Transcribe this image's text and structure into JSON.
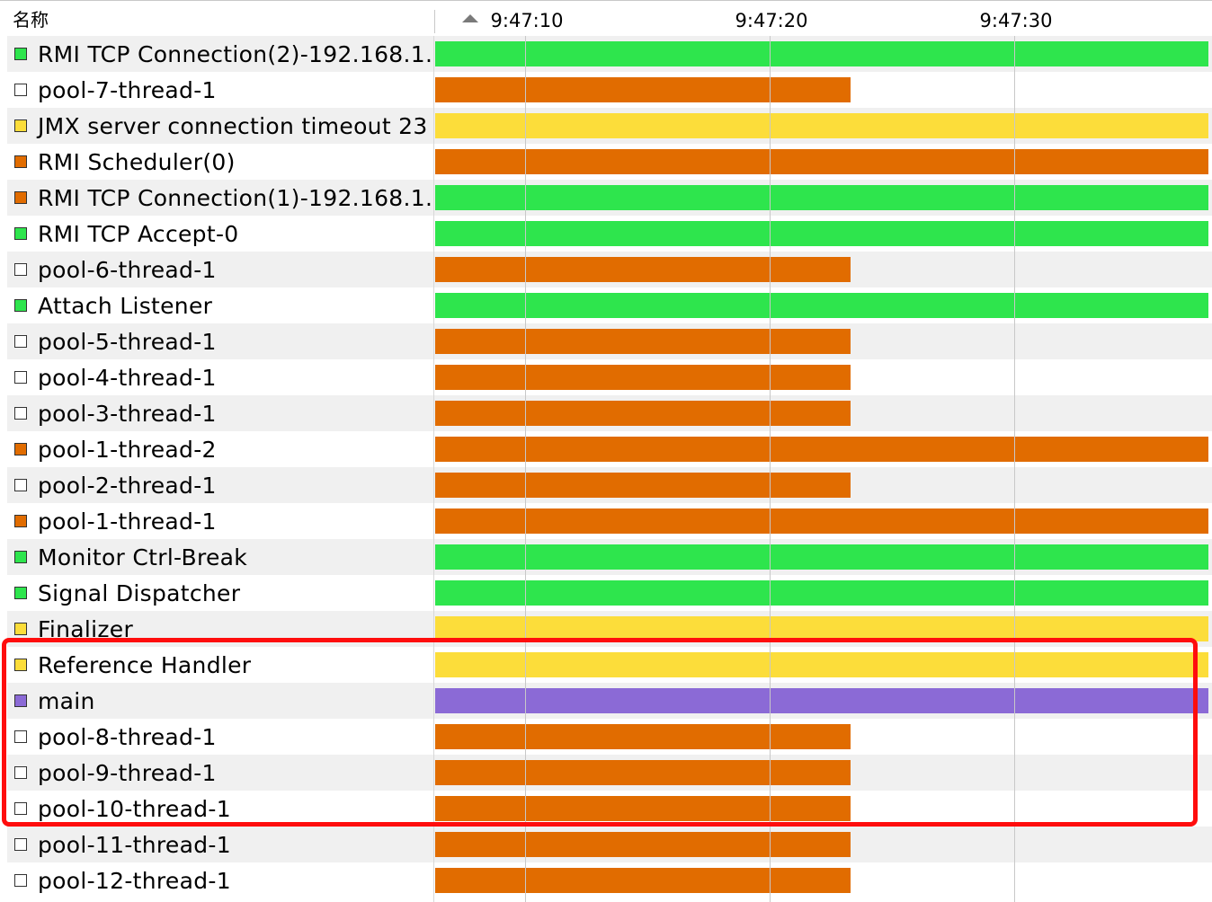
{
  "header": {
    "name_column": "名称",
    "sort_icon": "sort-ascending-icon",
    "ticks": [
      "9:47:10",
      "9:47:20",
      "9:47:30"
    ]
  },
  "state_colors": {
    "running": "#2ee54d",
    "sleeping": "#fcdd3a",
    "wait": "#e16c00",
    "monitor": "#8b6ad6",
    "finished": "#ffffff"
  },
  "threads": [
    {
      "name": "RMI TCP Connection(2)-192.168.1.",
      "state": "running",
      "bar_state": "running",
      "bar_end": "full"
    },
    {
      "name": "pool-7-thread-1",
      "state": "finished",
      "bar_state": "wait",
      "bar_end": "partial"
    },
    {
      "name": "JMX server connection timeout 23",
      "state": "sleeping",
      "bar_state": "sleeping",
      "bar_end": "full"
    },
    {
      "name": "RMI Scheduler(0)",
      "state": "wait",
      "bar_state": "wait",
      "bar_end": "full"
    },
    {
      "name": "RMI TCP Connection(1)-192.168.1.",
      "state": "wait",
      "bar_state": "running",
      "bar_end": "full"
    },
    {
      "name": "RMI TCP Accept-0",
      "state": "running",
      "bar_state": "running",
      "bar_end": "full"
    },
    {
      "name": "pool-6-thread-1",
      "state": "finished",
      "bar_state": "wait",
      "bar_end": "partial"
    },
    {
      "name": "Attach Listener",
      "state": "running",
      "bar_state": "running",
      "bar_end": "full"
    },
    {
      "name": "pool-5-thread-1",
      "state": "finished",
      "bar_state": "wait",
      "bar_end": "partial"
    },
    {
      "name": "pool-4-thread-1",
      "state": "finished",
      "bar_state": "wait",
      "bar_end": "partial"
    },
    {
      "name": "pool-3-thread-1",
      "state": "finished",
      "bar_state": "wait",
      "bar_end": "partial"
    },
    {
      "name": "pool-1-thread-2",
      "state": "wait",
      "bar_state": "wait",
      "bar_end": "full"
    },
    {
      "name": "pool-2-thread-1",
      "state": "finished",
      "bar_state": "wait",
      "bar_end": "partial"
    },
    {
      "name": "pool-1-thread-1",
      "state": "wait",
      "bar_state": "wait",
      "bar_end": "full"
    },
    {
      "name": "Monitor Ctrl-Break",
      "state": "running",
      "bar_state": "running",
      "bar_end": "full"
    },
    {
      "name": "Signal Dispatcher",
      "state": "running",
      "bar_state": "running",
      "bar_end": "full"
    },
    {
      "name": "Finalizer",
      "state": "sleeping",
      "bar_state": "sleeping",
      "bar_end": "full"
    },
    {
      "name": "Reference Handler",
      "state": "sleeping",
      "bar_state": "sleeping",
      "bar_end": "full"
    },
    {
      "name": "main",
      "state": "monitor",
      "bar_state": "monitor",
      "bar_end": "full"
    },
    {
      "name": "pool-8-thread-1",
      "state": "finished",
      "bar_state": "wait",
      "bar_end": "partial"
    },
    {
      "name": "pool-9-thread-1",
      "state": "finished",
      "bar_state": "wait",
      "bar_end": "partial"
    },
    {
      "name": "pool-10-thread-1",
      "state": "finished",
      "bar_state": "wait",
      "bar_end": "partial"
    },
    {
      "name": "pool-11-thread-1",
      "state": "finished",
      "bar_state": "wait",
      "bar_end": "partial"
    },
    {
      "name": "pool-12-thread-1",
      "state": "finished",
      "bar_state": "wait",
      "bar_end": "partial"
    }
  ]
}
